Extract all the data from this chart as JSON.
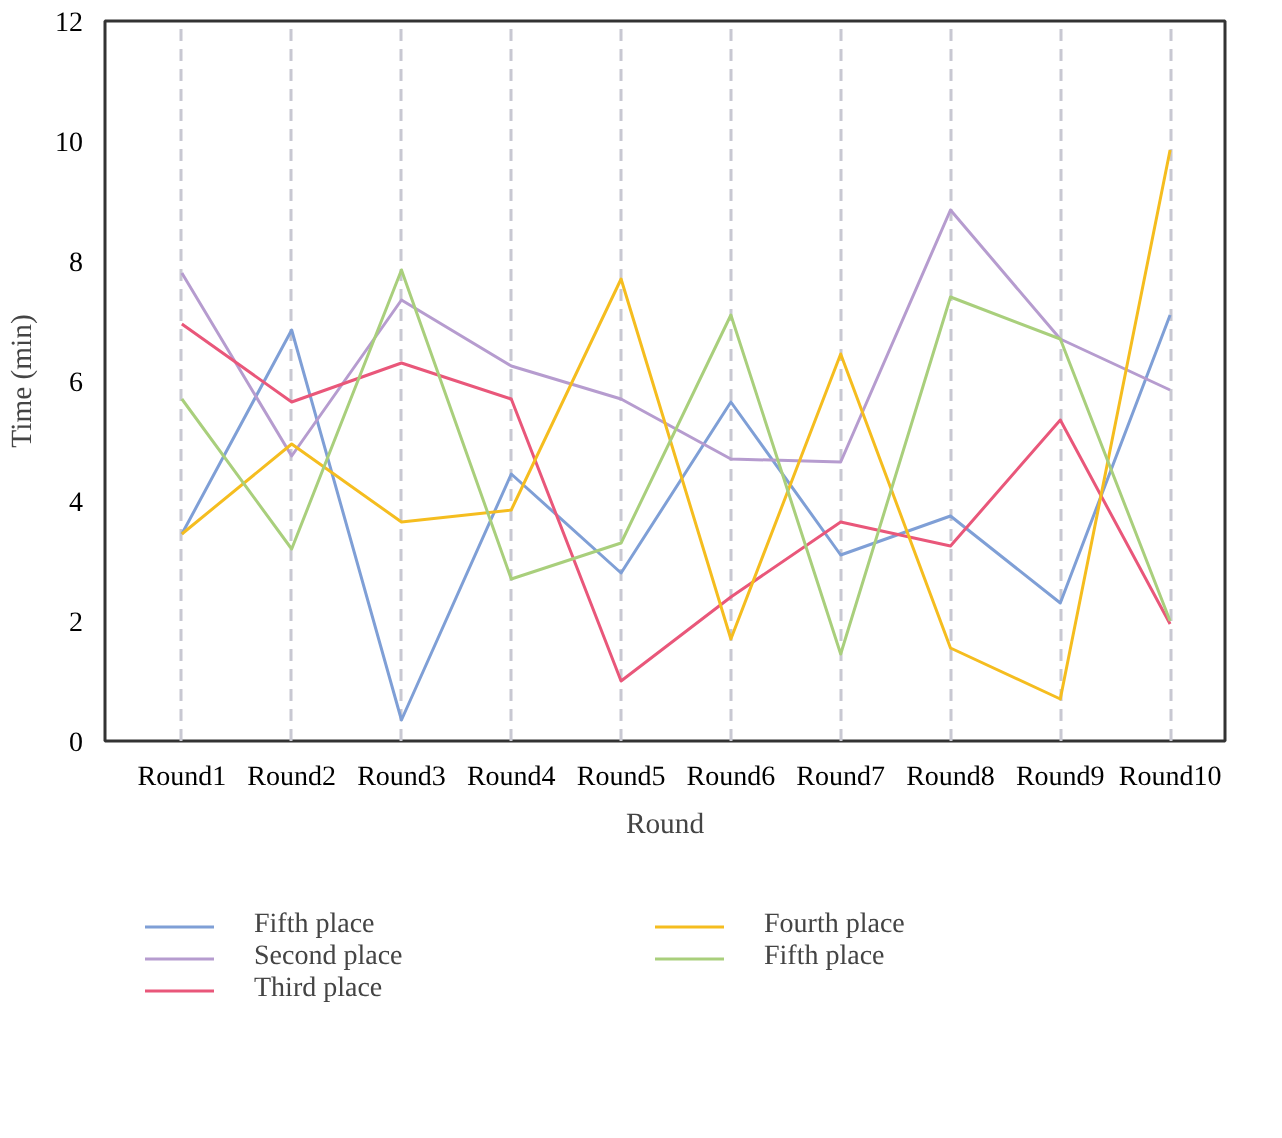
{
  "chart_data": {
    "type": "line",
    "xlabel": "Round",
    "ylabel": "Time (min)",
    "categories": [
      "Round1",
      "Round2",
      "Round3",
      "Round4",
      "Round5",
      "Round6",
      "Round7",
      "Round8",
      "Round9",
      "Round10"
    ],
    "series": [
      {
        "name": "Fifth place",
        "color": "#7f9fd6",
        "values": [
          3.45,
          6.85,
          0.35,
          4.45,
          2.8,
          5.65,
          3.1,
          3.75,
          2.3,
          7.1
        ]
      },
      {
        "name": "Second place",
        "color": "#b69ccf",
        "values": [
          7.8,
          4.75,
          7.35,
          6.25,
          5.7,
          4.7,
          4.65,
          8.85,
          6.7,
          5.85
        ]
      },
      {
        "name": "Third place",
        "color": "#e9577a",
        "values": [
          6.95,
          5.65,
          6.3,
          5.7,
          1.0,
          2.4,
          3.65,
          3.25,
          5.35,
          1.95
        ]
      },
      {
        "name": "Fourth place",
        "color": "#f5bd1f",
        "values": [
          3.45,
          4.95,
          3.65,
          3.85,
          7.7,
          1.7,
          6.45,
          1.55,
          0.7,
          9.85
        ]
      },
      {
        "name": "Fifth place",
        "color": "#a9cf7c",
        "values": [
          5.7,
          3.2,
          7.85,
          2.7,
          3.3,
          7.1,
          1.45,
          7.4,
          6.7,
          2.0
        ]
      }
    ],
    "ylim": [
      0,
      12
    ],
    "yticks": [
      0,
      2,
      4,
      6,
      8,
      10,
      12
    ],
    "grid": "x",
    "legend": "bottom"
  }
}
